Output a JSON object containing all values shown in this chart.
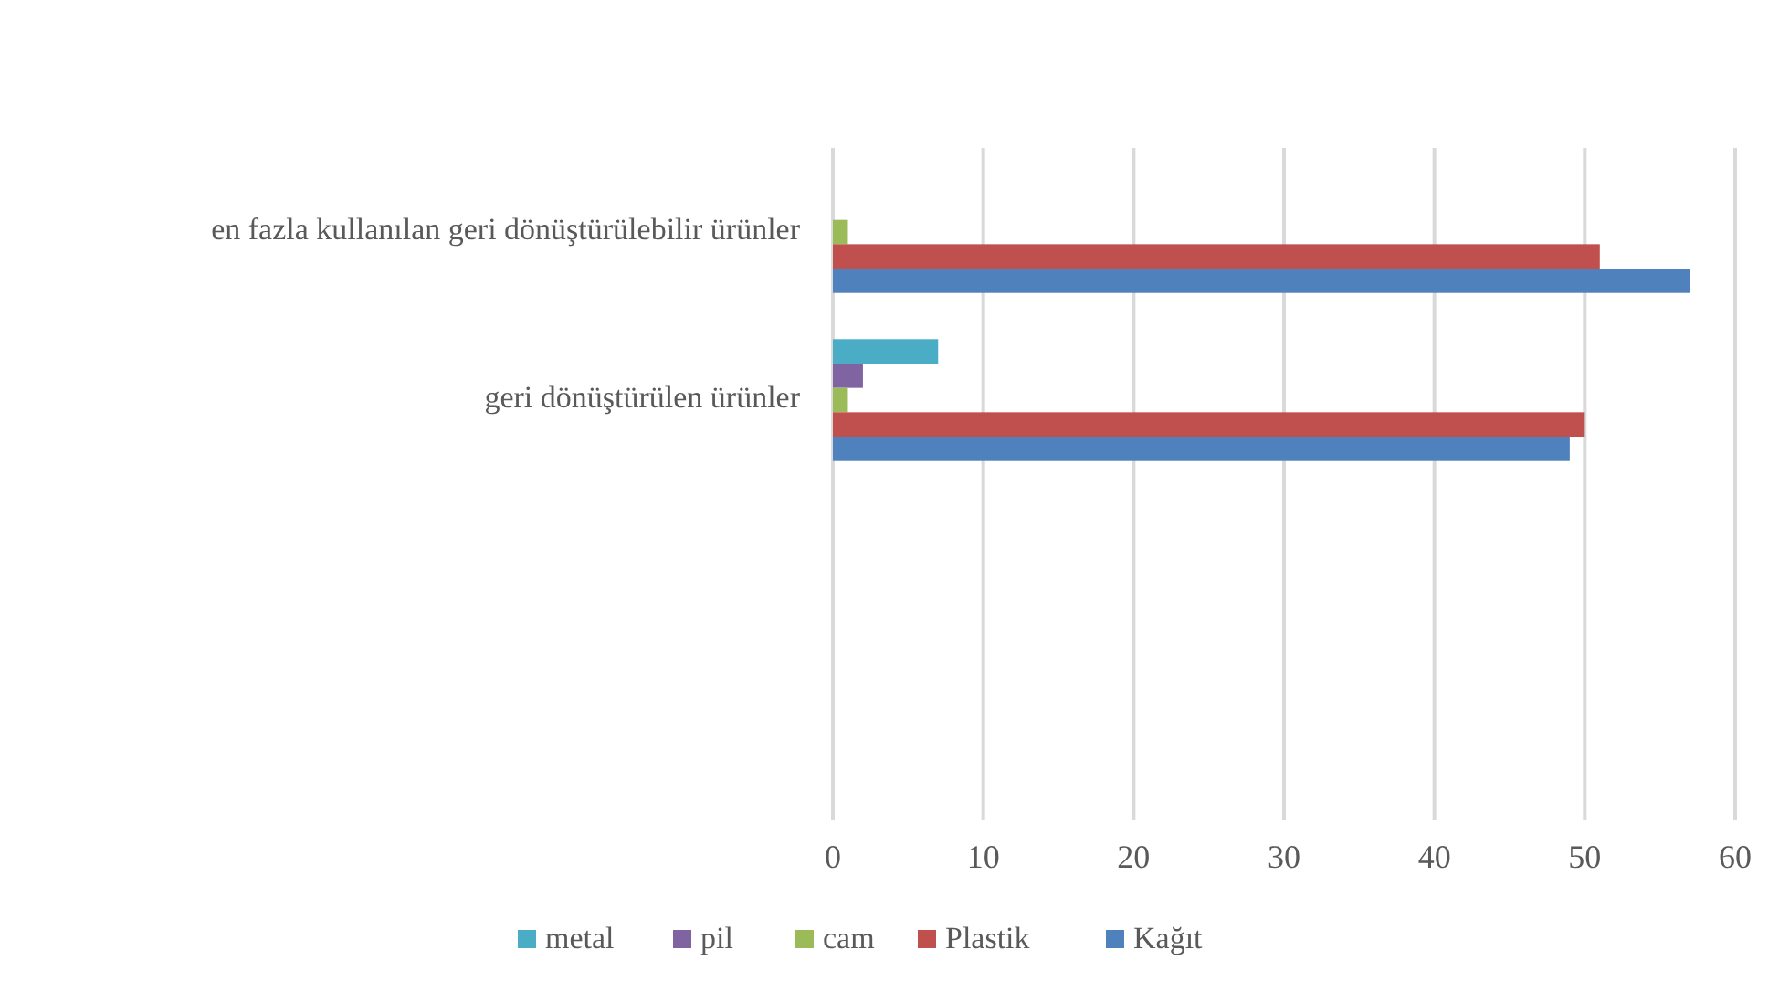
{
  "chart_data": {
    "type": "bar",
    "orientation": "horizontal",
    "categories": [
      "en fazla kullanılan geri dönüştürülebilir ürünler",
      "geri dönüştürülen ürünler",
      null,
      null
    ],
    "series": [
      {
        "name": "metal",
        "color": "#4bacc6",
        "values": [
          0,
          7,
          null,
          null
        ]
      },
      {
        "name": "pil",
        "color": "#8064a2",
        "values": [
          0,
          2,
          null,
          null
        ]
      },
      {
        "name": "cam",
        "color": "#9bbb59",
        "values": [
          1,
          1,
          null,
          null
        ]
      },
      {
        "name": "Plastik",
        "color": "#c0504d",
        "values": [
          51,
          50,
          null,
          null
        ]
      },
      {
        "name": "Kağıt",
        "color": "#4f81bd",
        "values": [
          57,
          49,
          null,
          null
        ]
      }
    ],
    "xlim": [
      0,
      60
    ],
    "xticks": [
      0,
      10,
      20,
      30,
      40,
      50,
      60
    ],
    "grid": "x",
    "legend": "bottom"
  }
}
